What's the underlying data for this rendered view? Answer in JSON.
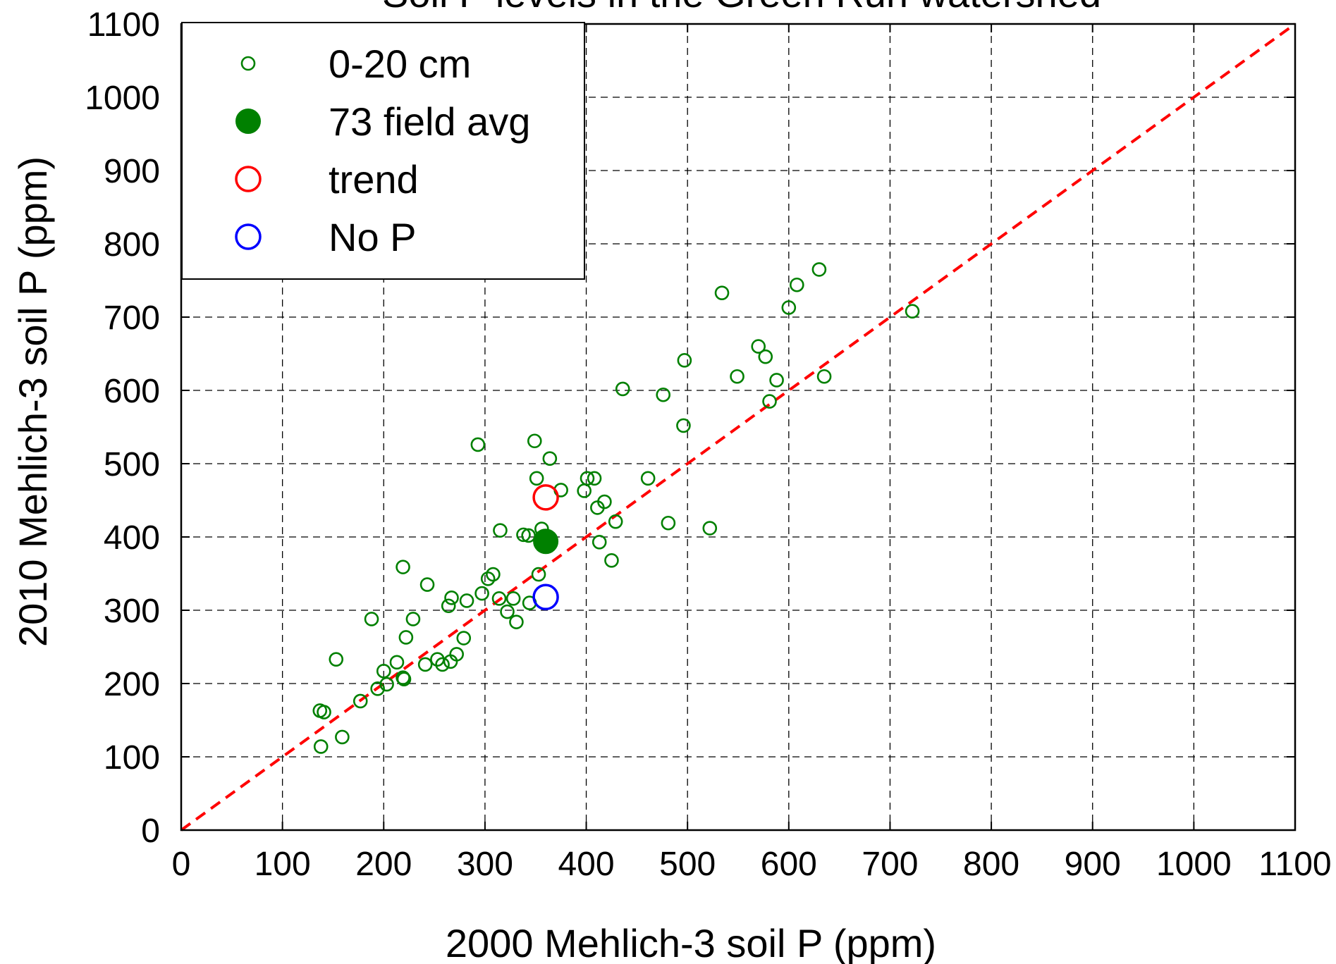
{
  "chart_data": {
    "type": "scatter",
    "title": "Soil P levels in the Green Run watershed",
    "xlabel": "2000 Mehlich-3 soil P (ppm)",
    "ylabel": "2010 Mehlich-3 soil P (ppm)",
    "xlim": [
      0,
      1100
    ],
    "ylim": [
      0,
      1100
    ],
    "x_ticks": [
      0,
      100,
      200,
      300,
      400,
      500,
      600,
      700,
      800,
      900,
      1000,
      1100
    ],
    "y_ticks": [
      0,
      100,
      200,
      300,
      400,
      500,
      600,
      700,
      800,
      900,
      1000,
      1100
    ],
    "grid": true,
    "legend_position": "top-left",
    "reference_line": {
      "from": [
        0,
        0
      ],
      "to": [
        1100,
        1100
      ],
      "style": "dashed",
      "color": "#ff0000"
    },
    "series": [
      {
        "name": "0-20 cm",
        "marker": "open-circle-small",
        "color": "#008000",
        "points": [
          [
            137,
            163
          ],
          [
            141,
            161
          ],
          [
            138,
            114
          ],
          [
            159,
            127
          ],
          [
            153,
            233
          ],
          [
            177,
            176
          ],
          [
            188,
            288
          ],
          [
            194,
            193
          ],
          [
            200,
            217
          ],
          [
            203,
            199
          ],
          [
            213,
            229
          ],
          [
            219,
            208
          ],
          [
            220,
            206
          ],
          [
            219,
            359
          ],
          [
            222,
            263
          ],
          [
            229,
            288
          ],
          [
            241,
            226
          ],
          [
            243,
            335
          ],
          [
            253,
            233
          ],
          [
            258,
            226
          ],
          [
            264,
            306
          ],
          [
            266,
            230
          ],
          [
            267,
            317
          ],
          [
            272,
            240
          ],
          [
            279,
            262
          ],
          [
            282,
            313
          ],
          [
            293,
            526
          ],
          [
            297,
            323
          ],
          [
            303,
            343
          ],
          [
            308,
            349
          ],
          [
            314,
            316
          ],
          [
            315,
            409
          ],
          [
            322,
            298
          ],
          [
            328,
            316
          ],
          [
            331,
            284
          ],
          [
            338,
            403
          ],
          [
            343,
            402
          ],
          [
            344,
            310
          ],
          [
            349,
            531
          ],
          [
            351,
            480
          ],
          [
            353,
            349
          ],
          [
            356,
            411
          ],
          [
            364,
            507
          ],
          [
            375,
            464
          ],
          [
            398,
            463
          ],
          [
            401,
            480
          ],
          [
            408,
            480
          ],
          [
            411,
            440
          ],
          [
            413,
            393
          ],
          [
            418,
            448
          ],
          [
            425,
            368
          ],
          [
            429,
            421
          ],
          [
            436,
            602
          ],
          [
            461,
            480
          ],
          [
            476,
            594
          ],
          [
            481,
            419
          ],
          [
            496,
            552
          ],
          [
            497,
            641
          ],
          [
            522,
            412
          ],
          [
            534,
            733
          ],
          [
            549,
            619
          ],
          [
            570,
            660
          ],
          [
            577,
            646
          ],
          [
            581,
            585
          ],
          [
            588,
            614
          ],
          [
            600,
            713
          ],
          [
            608,
            744
          ],
          [
            630,
            765
          ],
          [
            635,
            619
          ],
          [
            722,
            708
          ]
        ]
      },
      {
        "name": "73 field avg",
        "marker": "filled-circle",
        "color": "#008000",
        "points": [
          [
            360,
            394
          ]
        ]
      },
      {
        "name": "trend",
        "marker": "open-circle-large",
        "color": "#ff0000",
        "points": [
          [
            360,
            454
          ]
        ]
      },
      {
        "name": "No P",
        "marker": "open-circle-large",
        "color": "#0000ff",
        "points": [
          [
            360,
            318
          ]
        ]
      }
    ]
  }
}
